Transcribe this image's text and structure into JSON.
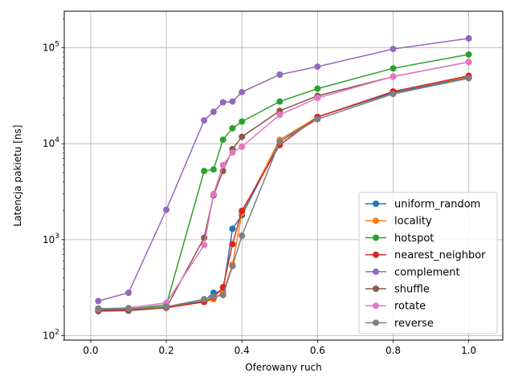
{
  "chart_data": {
    "type": "line",
    "xlabel": "Oferowany ruch",
    "ylabel": "Latencja pakietu [ns]",
    "xlim": [
      -0.07,
      1.09
    ],
    "ylim": [
      90,
      240000
    ],
    "yscale": "log",
    "grid": true,
    "legend_position": "lower right",
    "x_ticks": [
      {
        "value": 0.0,
        "label": "0.0"
      },
      {
        "value": 0.2,
        "label": "0.2"
      },
      {
        "value": 0.4,
        "label": "0.4"
      },
      {
        "value": 0.6,
        "label": "0.6"
      },
      {
        "value": 0.8,
        "label": "0.8"
      },
      {
        "value": 1.0,
        "label": "1.0"
      }
    ],
    "y_ticks": [
      {
        "value": 100,
        "base": "10",
        "exp": "2"
      },
      {
        "value": 1000,
        "base": "10",
        "exp": "3"
      },
      {
        "value": 10000,
        "base": "10",
        "exp": "4"
      },
      {
        "value": 100000,
        "base": "10",
        "exp": "5"
      }
    ],
    "series": [
      {
        "name": "uniform_random",
        "color": "#1f77b4",
        "x": [
          0.02,
          0.1,
          0.2,
          0.3,
          0.325,
          0.35,
          0.375,
          0.4,
          0.5,
          0.6,
          0.8,
          1.0
        ],
        "y": [
          185,
          185,
          200,
          230,
          280,
          290,
          1300,
          1800,
          10500,
          19000,
          34000,
          49000
        ]
      },
      {
        "name": "locality",
        "color": "#ff7f0e",
        "x": [
          0.02,
          0.1,
          0.2,
          0.3,
          0.325,
          0.35,
          0.375,
          0.4,
          0.5,
          0.6,
          0.8,
          1.0
        ],
        "y": [
          185,
          185,
          198,
          225,
          240,
          280,
          550,
          1900,
          11000,
          19000,
          35000,
          50000
        ]
      },
      {
        "name": "hotspot",
        "color": "#2ca02c",
        "x": [
          0.02,
          0.1,
          0.2,
          0.3,
          0.325,
          0.35,
          0.375,
          0.4,
          0.5,
          0.6,
          0.8,
          1.0
        ],
        "y": [
          190,
          190,
          210,
          5200,
          5400,
          11000,
          14500,
          17000,
          27500,
          37500,
          61000,
          85000
        ]
      },
      {
        "name": "nearest_neighbor",
        "color": "#d62728",
        "x": [
          0.02,
          0.1,
          0.2,
          0.3,
          0.325,
          0.35,
          0.375,
          0.4,
          0.5,
          0.6,
          0.8,
          1.0
        ],
        "y": [
          185,
          185,
          195,
          225,
          250,
          320,
          900,
          2000,
          9700,
          19000,
          35000,
          51000
        ]
      },
      {
        "name": "complement",
        "color": "#9467bd",
        "x": [
          0.02,
          0.1,
          0.2,
          0.3,
          0.325,
          0.35,
          0.375,
          0.4,
          0.5,
          0.6,
          0.8,
          1.0
        ],
        "y": [
          230,
          280,
          2050,
          17500,
          21500,
          27000,
          27500,
          34500,
          52500,
          63500,
          97000,
          125000
        ]
      },
      {
        "name": "shuffle",
        "color": "#8c564b",
        "x": [
          0.02,
          0.1,
          0.2,
          0.3,
          0.325,
          0.35,
          0.375,
          0.4,
          0.5,
          0.6,
          0.8,
          1.0
        ],
        "y": [
          180,
          182,
          195,
          1050,
          2900,
          5200,
          8800,
          11800,
          22000,
          31500,
          50000,
          71000
        ]
      },
      {
        "name": "rotate",
        "color": "#e377c2",
        "x": [
          0.02,
          0.1,
          0.2,
          0.3,
          0.325,
          0.35,
          0.375,
          0.4,
          0.5,
          0.6,
          0.8,
          1.0
        ],
        "y": [
          190,
          195,
          220,
          880,
          3000,
          6000,
          8100,
          9300,
          20000,
          30000,
          50000,
          71000
        ]
      },
      {
        "name": "reverse",
        "color": "#7f7f7f",
        "x": [
          0.02,
          0.1,
          0.2,
          0.3,
          0.325,
          0.35,
          0.375,
          0.4,
          0.5,
          0.6,
          0.8,
          1.0
        ],
        "y": [
          192,
          192,
          200,
          240,
          255,
          265,
          530,
          1100,
          10500,
          18000,
          33000,
          48000
        ]
      }
    ]
  }
}
